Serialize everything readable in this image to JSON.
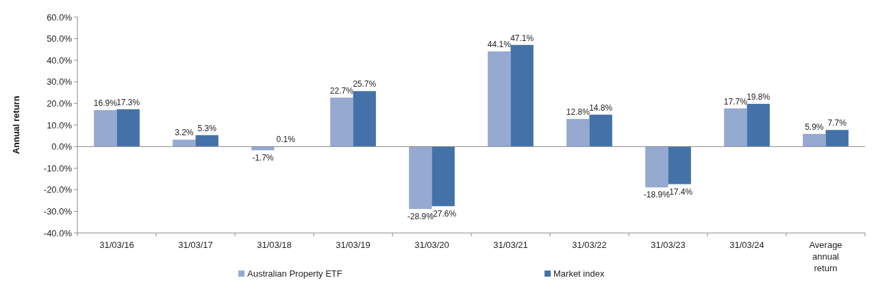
{
  "chart_data": {
    "type": "bar",
    "ylabel": "Annual return",
    "categories": [
      "31/03/16",
      "31/03/17",
      "31/03/18",
      "31/03/19",
      "31/03/20",
      "31/03/21",
      "31/03/22",
      "31/03/23",
      "31/03/24",
      "Average annual return"
    ],
    "series": [
      {
        "name": "Australian Property ETF",
        "color": "#95a9d1",
        "values": [
          16.9,
          3.2,
          -1.7,
          22.7,
          -28.9,
          44.1,
          12.8,
          -18.9,
          17.7,
          5.9
        ],
        "value_labels": [
          "16.9%",
          "3.2%",
          "-1.7%",
          "22.7%",
          "-28.9%",
          "44.1%",
          "12.8%",
          "-18.9%",
          "17.7%",
          "5.9%"
        ]
      },
      {
        "name": "Market index",
        "color": "#4472a8",
        "values": [
          17.3,
          5.3,
          0.1,
          25.7,
          -27.6,
          47.1,
          14.8,
          -17.4,
          19.8,
          7.7
        ],
        "value_labels": [
          "17.3%",
          "5.3%",
          "0.1%",
          "25.7%",
          "-27.6%",
          "47.1%",
          "14.8%",
          "-17.4%",
          "19.8%",
          "7.7%"
        ]
      }
    ],
    "ylim": [
      -40,
      60
    ],
    "yticks": [
      {
        "value": -40,
        "label": "-40.0%"
      },
      {
        "value": -30,
        "label": "-30.0%"
      },
      {
        "value": -20,
        "label": "-20.0%"
      },
      {
        "value": -10,
        "label": "-10.0%"
      },
      {
        "value": 0,
        "label": "0.0%"
      },
      {
        "value": 10,
        "label": "10.0%"
      },
      {
        "value": 20,
        "label": "20.0%"
      },
      {
        "value": 30,
        "label": "30.0%"
      },
      {
        "value": 40,
        "label": "40.0%"
      },
      {
        "value": 50,
        "label": "50.0%"
      },
      {
        "value": 60,
        "label": "60.0%"
      }
    ],
    "legend": "bottom"
  }
}
